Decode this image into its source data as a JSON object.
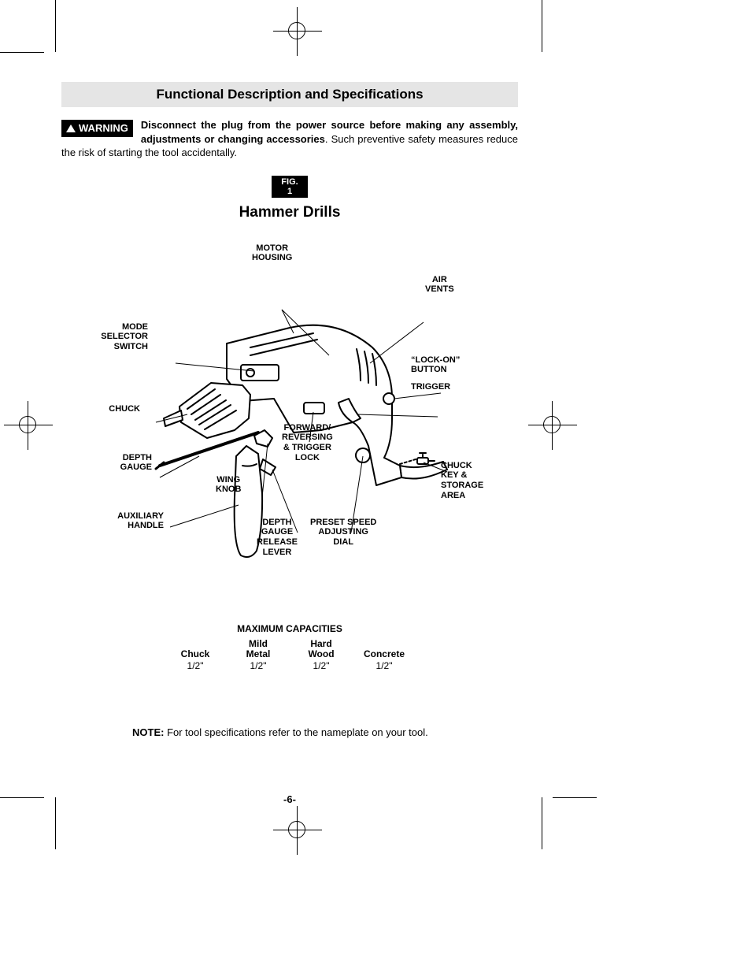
{
  "section_heading": "Functional Description and Specifications",
  "warning": {
    "badge": "WARNING",
    "bold_text": "Disconnect the plug from the power source before making any assembly, adjustments or changing accessories",
    "rest_text": ".  Such preventive safety measures reduce the risk of starting the tool accidentally."
  },
  "figure_badge": "FIG. 1",
  "subtitle": "Hammer Drills",
  "callouts": {
    "motor_housing": "MOTOR\nHOUSING",
    "air_vents": "AIR\nVENTS",
    "mode_selector": "MODE\nSELECTOR\nSWITCH",
    "lock_on": "“LOCK-ON”\nBUTTON",
    "trigger": "TRIGGER",
    "chuck": "CHUCK",
    "forward_rev": "FORWARD/\nREVERSING\n& TRIGGER\nLOCK",
    "depth_gauge": "DEPTH\nGAUGE",
    "wing_knob": "WING\nKNOB",
    "chuck_key": "CHUCK\nKEY &\nSTORAGE\nAREA",
    "aux_handle": "AUXILIARY\nHANDLE",
    "depth_release": "DEPTH\nGAUGE\nRELEASE\nLEVER",
    "preset_speed": "PRESET SPEED\nADJUSTING\nDIAL"
  },
  "capacities": {
    "title": "MAXIMUM CAPACITIES",
    "headers": [
      "Chuck",
      "Mild\nMetal",
      "Hard\nWood",
      "Concrete"
    ],
    "values": [
      "1/2\"",
      "1/2\"",
      "1/2\"",
      "1/2\""
    ]
  },
  "note": {
    "label": "NOTE:",
    "text": " For tool specifications refer to the nameplate on your tool."
  },
  "page_number": "-6-",
  "colors": {
    "heading_bg": "#e5e5e5",
    "badge_bg": "#000000",
    "badge_fg": "#ffffff",
    "page_bg": "#ffffff",
    "text": "#000000",
    "drill_fill": "#ffffff",
    "drill_stroke": "#000000"
  }
}
